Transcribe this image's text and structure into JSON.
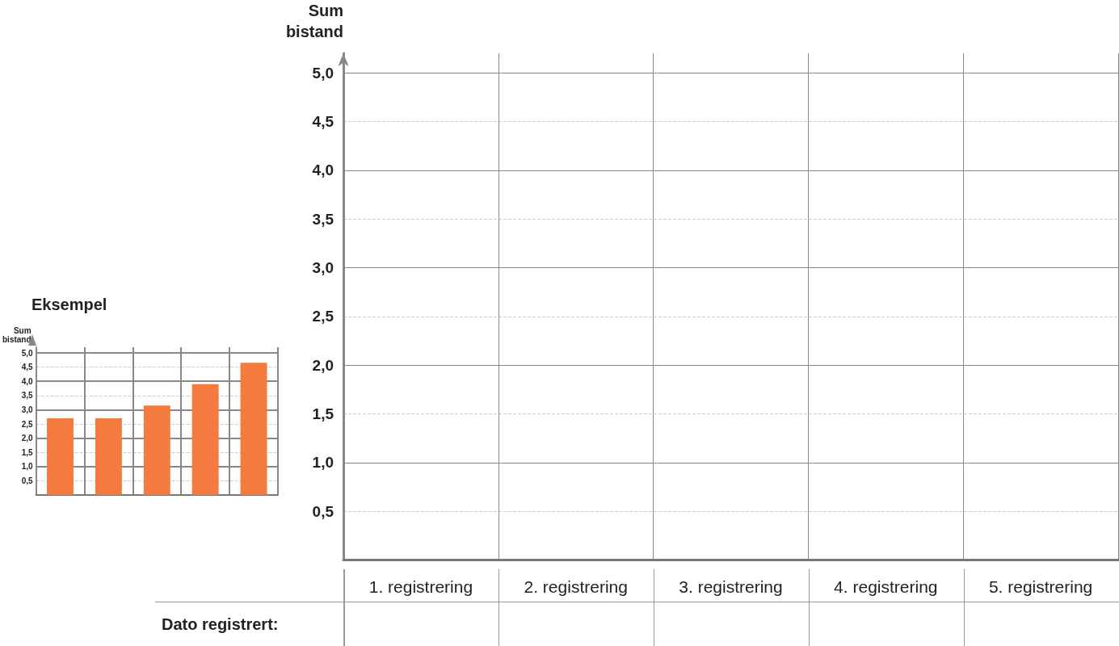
{
  "chart_data": [
    {
      "type": "bar",
      "title": "Eksempel",
      "ylabel": "Sum bistand",
      "categories": [
        null,
        null,
        null,
        null,
        null
      ],
      "series": [
        {
          "color": "#f47b40",
          "values": [
            2.7,
            2.7,
            3.15,
            3.9,
            4.65
          ]
        }
      ],
      "ylim": [
        0,
        5.2
      ],
      "yticks": [
        {
          "value": 0.5,
          "label": "0,5"
        },
        {
          "value": 1,
          "label": "1,0"
        },
        {
          "value": 1.5,
          "label": "1,5"
        },
        {
          "value": 2,
          "label": "2,0"
        },
        {
          "value": 2.5,
          "label": "2,5"
        },
        {
          "value": 3,
          "label": "3,0"
        },
        {
          "value": 3.5,
          "label": "3,5"
        },
        {
          "value": 4,
          "label": "4,0"
        },
        {
          "value": 4.5,
          "label": "4,5"
        },
        {
          "value": 5,
          "label": "5,0"
        }
      ],
      "grid": true
    },
    {
      "type": "bar",
      "ylabel": "Sum bistand",
      "categories": [
        "1. registrering",
        "2. registrering",
        "3. registrering",
        "4. registrering",
        "5. registrering"
      ],
      "series": [
        {
          "values": [
            null,
            null,
            null,
            null,
            null
          ]
        }
      ],
      "ylim": [
        0,
        5.2
      ],
      "yticks": [
        {
          "value": 0.5,
          "label": "0,5"
        },
        {
          "value": 1,
          "label": "1,0"
        },
        {
          "value": 1.5,
          "label": "1,5"
        },
        {
          "value": 2,
          "label": "2,0"
        },
        {
          "value": 2.5,
          "label": "2,5"
        },
        {
          "value": 3,
          "label": "3,0"
        },
        {
          "value": 3.5,
          "label": "3,5"
        },
        {
          "value": 4,
          "label": "4,0"
        },
        {
          "value": 4.5,
          "label": "4,5"
        },
        {
          "value": 5,
          "label": "5,0"
        }
      ],
      "grid": true,
      "annotations": [
        "Dato registrert:"
      ]
    }
  ]
}
